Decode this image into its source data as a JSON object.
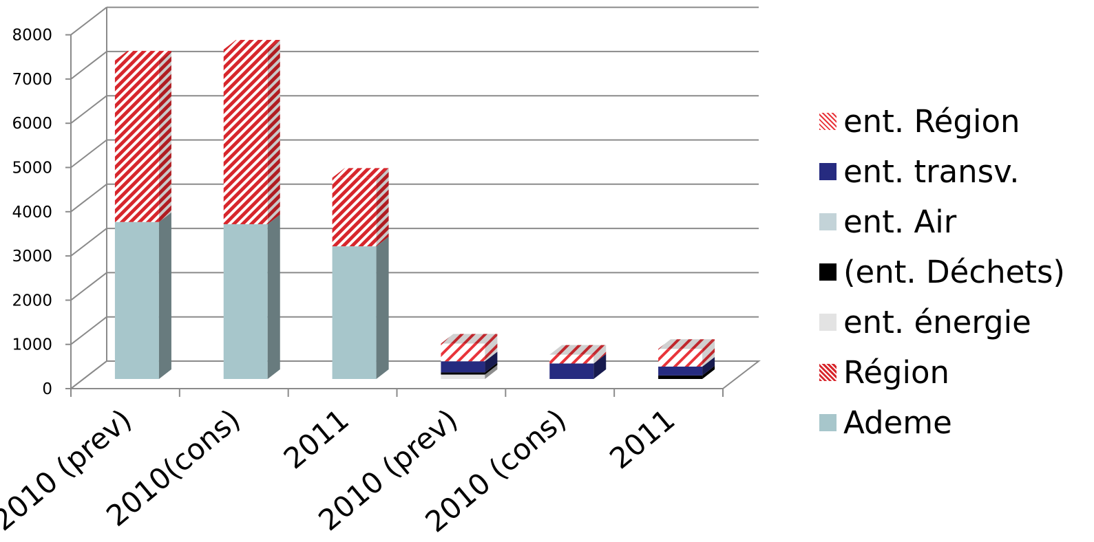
{
  "chart_data": {
    "type": "bar",
    "stacked": true,
    "three_d": true,
    "categories": [
      "2010 (prev)",
      "2010(cons)",
      "2011",
      "2010 (prev)",
      "2010 (cons)",
      "2011"
    ],
    "ylim": [
      0,
      8000
    ],
    "yticks": [
      "0",
      "1000",
      "2000",
      "3000",
      "4000",
      "5000",
      "6000",
      "7000",
      "8000"
    ],
    "grid": true,
    "legend_position": "right",
    "series": [
      {
        "name": "Ademe",
        "values": [
          3550,
          3500,
          3000,
          0,
          0,
          0
        ],
        "color": "#a7c6cb",
        "pattern": "solid"
      },
      {
        "name": "Région",
        "values": [
          3650,
          3950,
          1550,
          0,
          0,
          0
        ],
        "color": "#d7262c",
        "pattern": "dense-stripe"
      },
      {
        "name": "ent. énergie",
        "values": [
          0,
          0,
          0,
          100,
          0,
          0
        ],
        "color": "#e3e3e3",
        "pattern": "solid"
      },
      {
        "name": "(ent. Déchets)",
        "values": [
          0,
          0,
          0,
          50,
          0,
          80
        ],
        "color": "#000000",
        "pattern": "solid"
      },
      {
        "name": "ent. Air",
        "values": [
          0,
          0,
          0,
          0,
          0,
          0
        ],
        "color": "#c3d3d8",
        "pattern": "solid"
      },
      {
        "name": "ent. transv.",
        "values": [
          0,
          0,
          0,
          250,
          350,
          200
        ],
        "color": "#262b80",
        "pattern": "solid"
      },
      {
        "name": "ent. Région",
        "values": [
          0,
          0,
          0,
          400,
          200,
          400
        ],
        "color": "#e8343a",
        "pattern": "light-stripe"
      }
    ],
    "legend_order": [
      "ent. Région",
      "ent. transv.",
      "ent. Air",
      "(ent. Déchets)",
      "ent. énergie",
      "Région",
      "Ademe"
    ]
  }
}
